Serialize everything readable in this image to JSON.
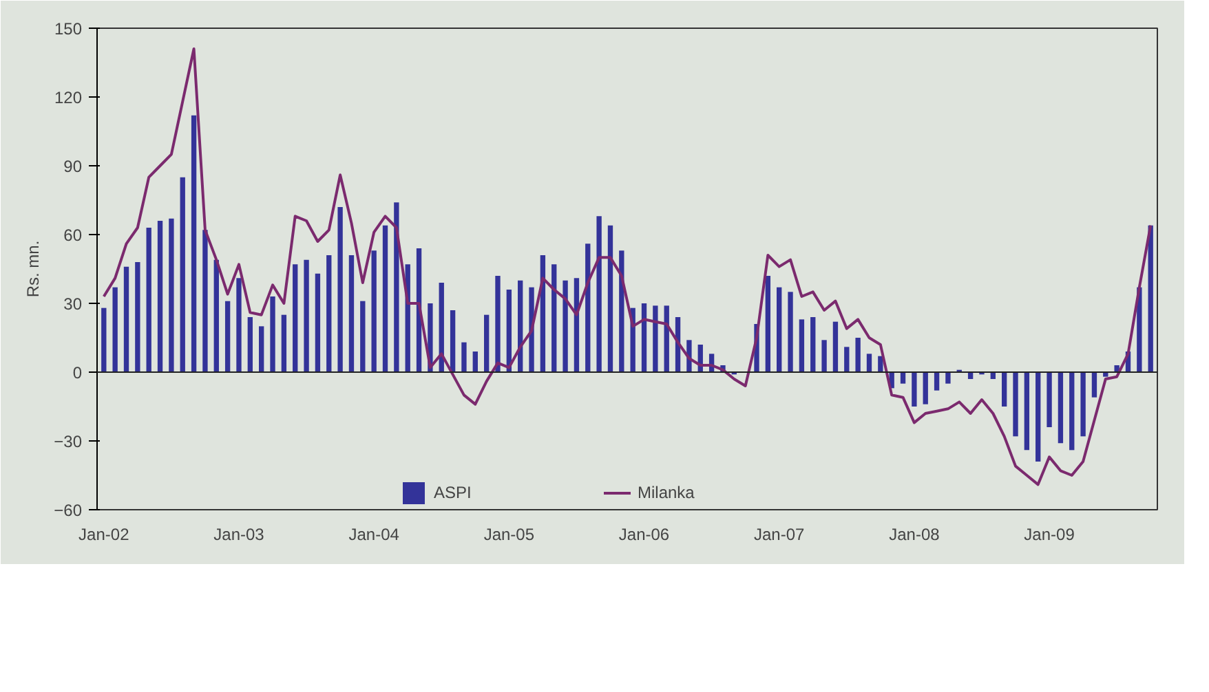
{
  "chart_data": {
    "type": "bar",
    "ylabel": "Rs. mn.",
    "categories": [
      "Jan-02",
      null,
      null,
      null,
      null,
      null,
      null,
      null,
      null,
      null,
      null,
      null,
      "Jan-03",
      null,
      null,
      null,
      null,
      null,
      null,
      null,
      null,
      null,
      null,
      null,
      "Jan-04",
      null,
      null,
      null,
      null,
      null,
      null,
      null,
      null,
      null,
      null,
      null,
      "Jan-05",
      null,
      null,
      null,
      null,
      null,
      null,
      null,
      null,
      null,
      null,
      null,
      "Jan-06",
      null,
      null,
      null,
      null,
      null,
      null,
      null,
      null,
      null,
      null,
      null,
      "Jan-07",
      null,
      null,
      null,
      null,
      null,
      null,
      null,
      null,
      null,
      null,
      null,
      "Jan-08",
      null,
      null,
      null,
      null,
      null,
      null,
      null,
      null,
      null,
      null,
      null,
      "Jan-09",
      null,
      null,
      null,
      null,
      null,
      null,
      null,
      null,
      null
    ],
    "series": [
      {
        "name": "ASPI",
        "color": "#333399",
        "values": [
          28,
          37,
          46,
          48,
          63,
          66,
          67,
          85,
          112,
          62,
          49,
          31,
          41,
          24,
          20,
          33,
          25,
          47,
          49,
          43,
          51,
          72,
          51,
          31,
          53,
          64,
          74,
          47,
          54,
          30,
          39,
          27,
          13,
          9,
          25,
          42,
          36,
          40,
          37,
          51,
          47,
          40,
          41,
          56,
          68,
          64,
          53,
          28,
          30,
          29,
          29,
          24,
          14,
          12,
          8,
          3,
          -1,
          0,
          21,
          42,
          37,
          35,
          23,
          24,
          14,
          22,
          11,
          15,
          8,
          7,
          -7,
          -5,
          -15,
          -14,
          -8,
          -5,
          1,
          -3,
          -1,
          -3,
          -15,
          -28,
          -34,
          -39,
          -24,
          -31,
          -34,
          -28,
          -11,
          -2,
          3,
          9,
          37,
          64
        ]
      },
      {
        "name": "Milanka",
        "type": "line",
        "color": "#7b2a6e",
        "values": [
          33,
          41,
          56,
          63,
          85,
          90,
          95,
          118,
          141,
          62,
          49,
          34,
          47,
          26,
          25,
          38,
          30,
          68,
          66,
          57,
          62,
          86,
          65,
          39,
          61,
          68,
          63,
          30,
          30,
          2,
          8,
          -1,
          -10,
          -14,
          -4,
          4,
          2,
          11,
          18,
          41,
          36,
          32,
          25,
          39,
          50,
          50,
          42,
          20,
          23,
          22,
          21,
          13,
          6,
          3,
          3,
          1,
          -3,
          -6,
          15,
          51,
          46,
          49,
          33,
          35,
          27,
          31,
          19,
          23,
          15,
          12,
          -10,
          -11,
          -22,
          -18,
          -17,
          -16,
          -13,
          -18,
          -12,
          -18,
          -28,
          -41,
          -45,
          -49,
          -37,
          -43,
          -45,
          -39,
          -21,
          -3,
          -2,
          8,
          37,
          64
        ]
      }
    ],
    "ylim": [
      -60,
      150
    ],
    "yticks": [
      -60,
      -30,
      0,
      30,
      60,
      90,
      120,
      150
    ],
    "grid": false,
    "legend": "bottom",
    "ref_lines": [
      {
        "axis": "y",
        "value": 0
      }
    ]
  }
}
